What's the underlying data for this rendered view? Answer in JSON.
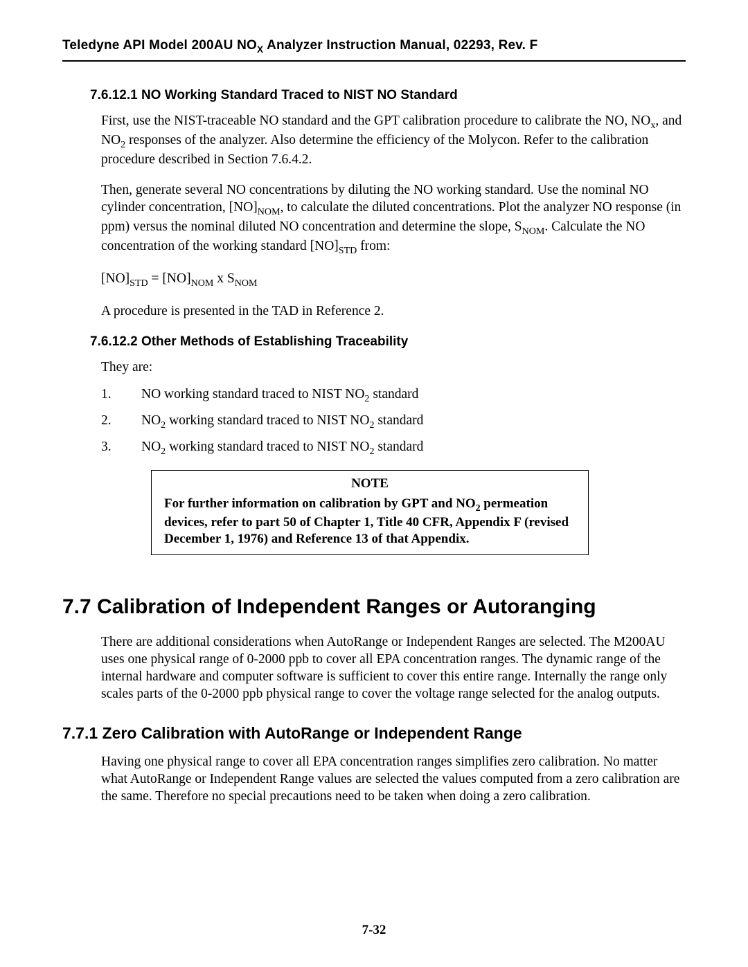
{
  "header": {
    "text_html": "Teledyne API Model 200AU NO<sub>X</sub> Analyzer Instruction Manual, 02293, Rev. F"
  },
  "section_76121": {
    "heading": "7.6.12.1  NO Working Standard Traced to NIST NO Standard",
    "p1_html": "First, use the NIST-traceable NO standard and the GPT calibration procedure to calibrate the NO, NO<sub>x</sub>, and NO<sub>2</sub> responses of the analyzer. Also determine the efficiency of the Molycon. Refer to the calibration procedure described in Section 7.6.4.2.",
    "p2_html": "Then, generate several NO concentrations by diluting the NO working standard. Use the nominal NO cylinder concentration, [NO]<sub>NOM</sub>, to calculate the diluted concentrations. Plot the analyzer NO response (in ppm) versus the nominal diluted NO concentration and determine the slope, S<sub>NOM</sub>. Calculate the NO concentration of the working standard [NO]<sub>STD</sub> from:",
    "eq_html": "[NO]<sub>STD</sub> = [NO]<sub>NOM</sub> x S<sub>NOM</sub>",
    "p3": "A procedure is presented in the TAD in Reference 2."
  },
  "section_76122": {
    "heading": "7.6.12.2  Other Methods of Establishing Traceability",
    "intro": "They are:",
    "items": [
      {
        "n": "1.",
        "text_html": "NO working standard traced to NIST NO<sub>2</sub> standard"
      },
      {
        "n": "2.",
        "text_html": "NO<sub>2</sub> working standard traced to NIST NO<sub>2</sub> standard"
      },
      {
        "n": "3.",
        "text_html": "NO<sub>2</sub> working standard traced to NIST NO<sub>2</sub> standard"
      }
    ],
    "note_title": "NOTE",
    "note_body_html": "For further information on calibration by GPT and NO<sub>2</sub> permeation devices, refer to part 50 of Chapter 1, Title 40 CFR, Appendix F (revised December 1, 1976) and Reference 13 of that Appendix."
  },
  "section_77": {
    "heading": "7.7  Calibration of Independent Ranges or Autoranging",
    "p1": "There are additional considerations when AutoRange or Independent Ranges are selected. The M200AU uses one physical range of 0-2000 ppb to cover all EPA concentration ranges. The dynamic range of the internal hardware and computer software is sufficient to cover this entire range. Internally the range only scales parts of the 0-2000 ppb physical range to cover the voltage range selected for the analog outputs."
  },
  "section_771": {
    "heading": "7.7.1  Zero Calibration with AutoRange or Independent Range",
    "p1": "Having one physical range to cover all EPA concentration ranges simplifies zero calibration. No matter what AutoRange or Independent Range values are selected the values computed from a zero calibration are the same. Therefore no special precautions need to be taken when doing a zero calibration."
  },
  "page_number": "7-32"
}
